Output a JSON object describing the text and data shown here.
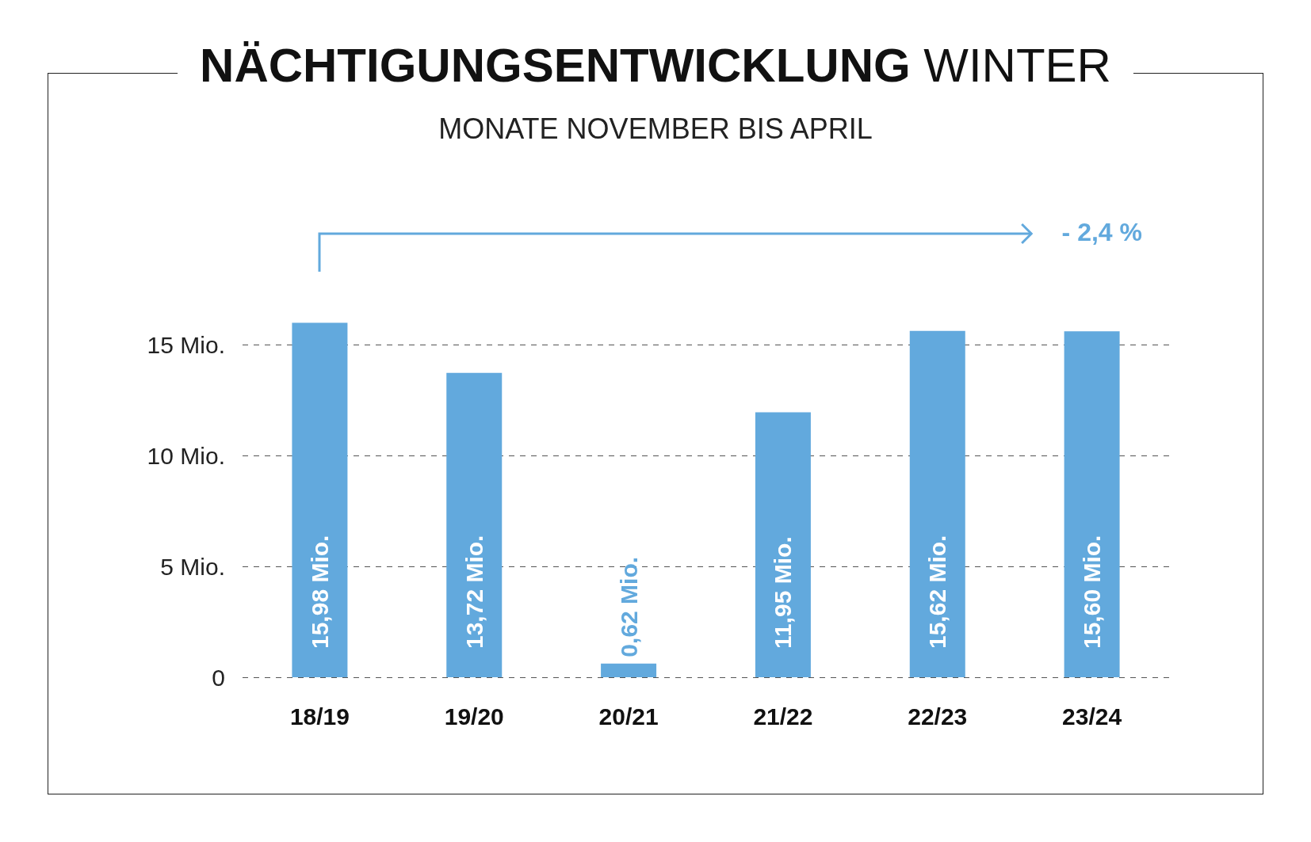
{
  "chart_data": {
    "type": "bar",
    "title": "NÄCHTIGUNGSENTWICKLUNG WINTER",
    "subtitle": "MONATE NOVEMBER BIS APRIL",
    "categories": [
      "18/19",
      "19/20",
      "20/21",
      "21/22",
      "22/23",
      "23/24"
    ],
    "values": [
      15.98,
      13.72,
      0.62,
      11.95,
      15.62,
      15.6
    ],
    "value_labels": [
      "15,98 Mio.",
      "13,72 Mio.",
      "0,62 Mio.",
      "11,95 Mio.",
      "15,62 Mio.",
      "15,60 Mio."
    ],
    "color": "#62a9dd",
    "ylim": [
      0,
      16
    ],
    "yticks": [
      {
        "value": 0,
        "label": "0"
      },
      {
        "value": 5,
        "label": "5 Mio."
      },
      {
        "value": 10,
        "label": "10 Mio."
      },
      {
        "value": 15,
        "label": "15 Mio."
      }
    ],
    "grid": "y",
    "annotations": [
      "- 2,4 %"
    ]
  }
}
